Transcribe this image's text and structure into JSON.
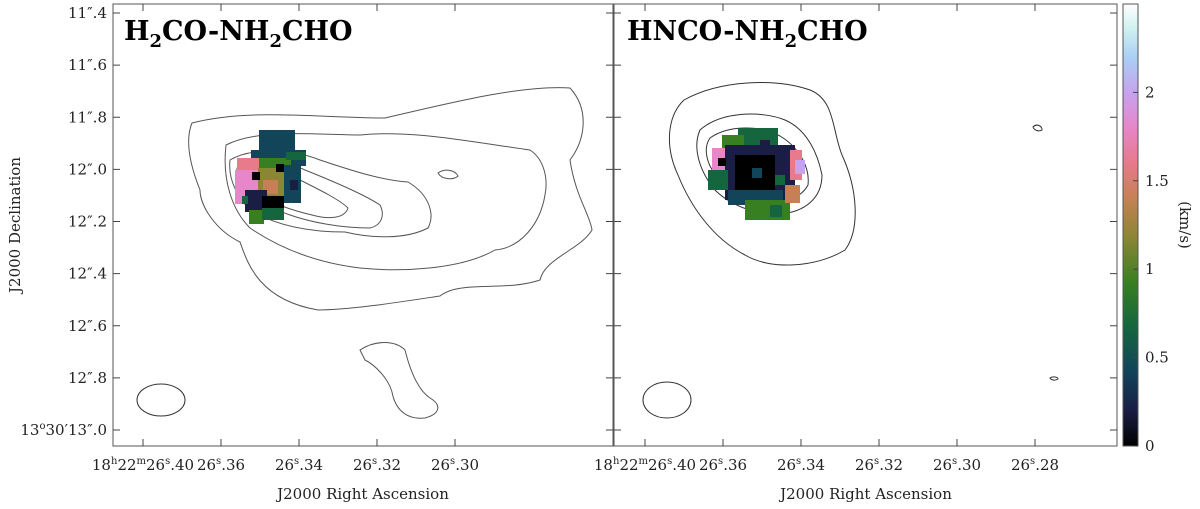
{
  "chart_data": [
    {
      "type": "heatmap",
      "panel": "left",
      "title": "H2CO-NH2CHO",
      "title_parts": {
        "a": "H",
        "a_sub": "2",
        "b": "CO-NH",
        "b_sub": "2",
        "c": "CHO"
      },
      "xlabel": "J2000 Right Ascension",
      "ylabel": "J2000 Declination",
      "xticks": [
        "18h22m26s.40",
        "26s.36",
        "26s.34",
        "26s.32",
        "26s.30"
      ],
      "xtick_parts": [
        {
          "pre": "18",
          "sup1": "h",
          "mid1": "22",
          "sup2": "m",
          "mid2": "26",
          "sup3": "s",
          "post": ".40"
        },
        {
          "pre": "26",
          "sup3": "s",
          "post": ".36"
        },
        {
          "pre": "26",
          "sup3": "s",
          "post": ".34"
        },
        {
          "pre": "26",
          "sup3": "s",
          "post": ".32"
        },
        {
          "pre": "26",
          "sup3": "s",
          "post": ".30"
        }
      ],
      "yticks": [
        "11''.4",
        "11''.6",
        "11''.8",
        "12''.0",
        "12''.2",
        "12''.4",
        "12''.6",
        "12''.8",
        "13°30'13''.0"
      ],
      "ytick_labels": [
        "11″.4",
        "11″.6",
        "11″.8",
        "12″.0",
        "12″.2",
        "12″.4",
        "12″.6",
        "12″.8"
      ],
      "ytick_last": {
        "pre": "13",
        "sup": "o",
        "post": "30′13″.0"
      },
      "contours": "integrated intensity contours (5 levels), secondary clump near 12''.6-12''.9",
      "beam": "ellipse, lower-left"
    },
    {
      "type": "heatmap",
      "panel": "right",
      "title": "HNCO-NH2CHO",
      "title_parts": {
        "a": "HNCO-NH",
        "a_sub": "2",
        "b": "CHO"
      },
      "xlabel": "J2000 Right Ascension",
      "xticks": [
        "18h22m26s.40",
        "26s.36",
        "26s.34",
        "26s.32",
        "26s.30",
        "26s.28"
      ],
      "xtick_parts": [
        {
          "pre": "18",
          "sup1": "h",
          "mid1": "22",
          "sup2": "m",
          "mid2": "26",
          "sup3": "s",
          "post": ".40"
        },
        {
          "pre": "26",
          "sup3": "s",
          "post": ".36"
        },
        {
          "pre": "26",
          "sup3": "s",
          "post": ".34"
        },
        {
          "pre": "26",
          "sup3": "s",
          "post": ".32"
        },
        {
          "pre": "26",
          "sup3": "s",
          "post": ".30"
        },
        {
          "pre": "26",
          "sup3": "s",
          "post": ".28"
        }
      ],
      "contours": "integrated intensity contours (4 levels)",
      "beam": "ellipse, lower-left"
    }
  ],
  "colorbar": {
    "label": "(km/s)",
    "range": [
      0,
      2.5
    ],
    "ticks": [
      "0",
      "0.5",
      "1",
      "1.5",
      "2"
    ],
    "tick_values": [
      0,
      0.5,
      1,
      1.5,
      2
    ],
    "colors": [
      "#000000",
      "#1a1d44",
      "#12445a",
      "#15663e",
      "#387f22",
      "#8a8634",
      "#c58155",
      "#e77a8b",
      "#e786c8",
      "#c5a3ee",
      "#aad0f4",
      "#d4f3ef",
      "#ffffff"
    ]
  }
}
